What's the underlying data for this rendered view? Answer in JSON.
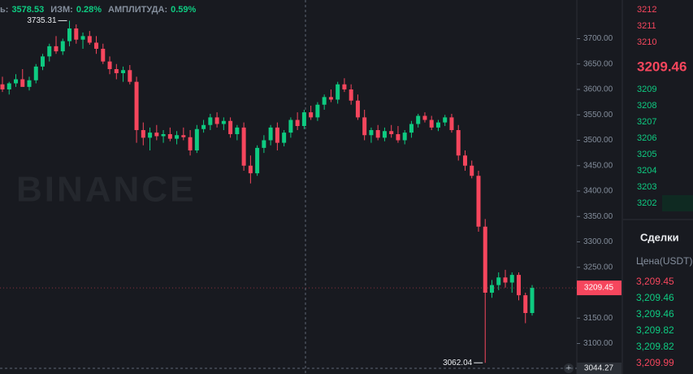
{
  "header": {
    "items": [
      {
        "label": "ь:",
        "value": "3578.53"
      },
      {
        "label": "ИЗМ:",
        "value": "0.28%"
      },
      {
        "label": "АМПЛИТУДА:",
        "value": "0.59%"
      }
    ]
  },
  "watermark": "BINANCE",
  "chart_data": {
    "type": "candlestick",
    "up_color": "#0ecb81",
    "down_color": "#f6465d",
    "ylim": [
      3040,
      3776
    ],
    "yticks": [
      {
        "value": 3100,
        "label": "3100.00"
      },
      {
        "value": 3150,
        "label": "3150.00"
      },
      {
        "value": 3200,
        "label": "3200.00"
      },
      {
        "value": 3250,
        "label": "3250.00"
      },
      {
        "value": 3300,
        "label": "3300.00"
      },
      {
        "value": 3350,
        "label": "3350.00"
      },
      {
        "value": 3400,
        "label": "3400.00"
      },
      {
        "value": 3450,
        "label": "3450.00"
      },
      {
        "value": 3500,
        "label": "3500.00"
      },
      {
        "value": 3550,
        "label": "3550.00"
      },
      {
        "value": 3600,
        "label": "3600.00"
      },
      {
        "value": 3650,
        "label": "3650.00"
      },
      {
        "value": 3700,
        "label": "3700.00"
      }
    ],
    "values": [
      [
        3610,
        3625,
        3595,
        3600
      ],
      [
        3600,
        3615,
        3590,
        3612
      ],
      [
        3612,
        3630,
        3605,
        3620
      ],
      [
        3620,
        3640,
        3610,
        3605
      ],
      [
        3605,
        3625,
        3598,
        3618
      ],
      [
        3618,
        3650,
        3612,
        3645
      ],
      [
        3645,
        3670,
        3638,
        3665
      ],
      [
        3665,
        3690,
        3655,
        3685
      ],
      [
        3685,
        3705,
        3670,
        3675
      ],
      [
        3675,
        3700,
        3668,
        3695
      ],
      [
        3695,
        3735.31,
        3685,
        3720
      ],
      [
        3720,
        3728,
        3690,
        3698
      ],
      [
        3698,
        3712,
        3680,
        3705
      ],
      [
        3705,
        3715,
        3688,
        3692
      ],
      [
        3692,
        3705,
        3670,
        3680
      ],
      [
        3680,
        3690,
        3650,
        3655
      ],
      [
        3655,
        3665,
        3630,
        3640
      ],
      [
        3640,
        3650,
        3620,
        3632
      ],
      [
        3632,
        3645,
        3615,
        3638
      ],
      [
        3638,
        3648,
        3610,
        3615
      ],
      [
        3615,
        3625,
        3495,
        3520
      ],
      [
        3520,
        3535,
        3490,
        3505
      ],
      [
        3505,
        3525,
        3480,
        3515
      ],
      [
        3515,
        3530,
        3500,
        3508
      ],
      [
        3508,
        3520,
        3495,
        3512
      ],
      [
        3512,
        3525,
        3498,
        3503
      ],
      [
        3503,
        3518,
        3492,
        3510
      ],
      [
        3510,
        3525,
        3500,
        3506
      ],
      [
        3506,
        3520,
        3470,
        3480
      ],
      [
        3480,
        3530,
        3475,
        3522
      ],
      [
        3522,
        3540,
        3515,
        3530
      ],
      [
        3530,
        3552,
        3520,
        3545
      ],
      [
        3545,
        3555,
        3525,
        3532
      ],
      [
        3532,
        3545,
        3520,
        3538
      ],
      [
        3538,
        3545,
        3505,
        3512
      ],
      [
        3512,
        3530,
        3500,
        3525
      ],
      [
        3525,
        3535,
        3440,
        3450
      ],
      [
        3450,
        3470,
        3415,
        3435
      ],
      [
        3435,
        3490,
        3430,
        3485
      ],
      [
        3485,
        3510,
        3475,
        3500
      ],
      [
        3500,
        3530,
        3490,
        3525
      ],
      [
        3525,
        3535,
        3480,
        3495
      ],
      [
        3495,
        3520,
        3488,
        3515
      ],
      [
        3515,
        3545,
        3505,
        3540
      ],
      [
        3540,
        3555,
        3520,
        3528
      ],
      [
        3528,
        3560,
        3522,
        3555
      ],
      [
        3555,
        3568,
        3540,
        3545
      ],
      [
        3545,
        3575,
        3538,
        3570
      ],
      [
        3570,
        3590,
        3560,
        3585
      ],
      [
        3585,
        3600,
        3575,
        3580
      ],
      [
        3580,
        3615,
        3572,
        3610
      ],
      [
        3610,
        3622,
        3595,
        3600
      ],
      [
        3600,
        3610,
        3570,
        3578
      ],
      [
        3578,
        3590,
        3540,
        3545
      ],
      [
        3545,
        3560,
        3500,
        3510
      ],
      [
        3510,
        3525,
        3495,
        3520
      ],
      [
        3520,
        3530,
        3500,
        3505
      ],
      [
        3505,
        3525,
        3498,
        3518
      ],
      [
        3518,
        3530,
        3505,
        3512
      ],
      [
        3512,
        3528,
        3495,
        3500
      ],
      [
        3500,
        3520,
        3492,
        3515
      ],
      [
        3515,
        3538,
        3505,
        3532
      ],
      [
        3532,
        3552,
        3525,
        3548
      ],
      [
        3548,
        3555,
        3535,
        3540
      ],
      [
        3540,
        3548,
        3520,
        3525
      ],
      [
        3525,
        3540,
        3518,
        3535
      ],
      [
        3535,
        3550,
        3528,
        3545
      ],
      [
        3545,
        3552,
        3515,
        3520
      ],
      [
        3520,
        3530,
        3460,
        3470
      ],
      [
        3470,
        3480,
        3440,
        3450
      ],
      [
        3450,
        3460,
        3425,
        3430
      ],
      [
        3430,
        3440,
        3320,
        3330
      ],
      [
        3330,
        3345,
        3062.04,
        3200
      ],
      [
        3200,
        3225,
        3190,
        3215
      ],
      [
        3215,
        3240,
        3205,
        3230
      ],
      [
        3230,
        3245,
        3210,
        3220
      ],
      [
        3220,
        3240,
        3200,
        3235
      ],
      [
        3235,
        3240,
        3185,
        3195
      ],
      [
        3195,
        3200,
        3140,
        3160
      ],
      [
        3160,
        3215,
        3155,
        3209.45
      ]
    ],
    "high_label": "3735.31",
    "low_label": "3062.04",
    "last_price": 3209.45,
    "crosshair_price": 3044.27
  },
  "order_book": {
    "asks": [
      3212,
      3211,
      3210
    ],
    "ask_color": "#f6465d",
    "last_price": 3209.46,
    "bids": [
      3209,
      3208,
      3207,
      3206,
      3205,
      3204,
      3203,
      3202
    ],
    "bid_color": "#0ecb81"
  },
  "trades": {
    "title": "Сделки",
    "column": "Цена(USDT)",
    "rows": [
      {
        "label": "3,209.45",
        "color": "#f6465d"
      },
      {
        "label": "3,209.46",
        "color": "#0ecb81"
      },
      {
        "label": "3,209.46",
        "color": "#0ecb81"
      },
      {
        "label": "3,209.82",
        "color": "#0ecb81"
      },
      {
        "label": "3,209.82",
        "color": "#0ecb81"
      },
      {
        "label": "3,209.99",
        "color": "#f6465d"
      }
    ]
  }
}
